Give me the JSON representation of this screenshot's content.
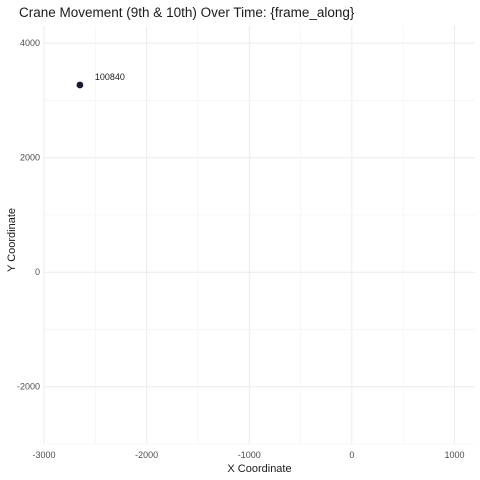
{
  "chart_data": {
    "type": "scatter",
    "title": "Crane Movement (9th & 10th) Over Time: {frame_along}",
    "xlabel": "X Coordinate",
    "ylabel": "Y Coordinate",
    "xlim": [
      -3000,
      1200
    ],
    "ylim": [
      -3000,
      4300
    ],
    "x_ticks": [
      -3000,
      -2000,
      -1000,
      0,
      1000
    ],
    "x_tick_labels": [
      "-3000",
      "-2000",
      "-1000",
      "0",
      "1000"
    ],
    "y_ticks": [
      -2000,
      0,
      2000,
      4000
    ],
    "y_tick_labels": [
      "-2000",
      "0",
      "2000",
      "4000"
    ],
    "grid": true,
    "legend": "none",
    "point_color": "#1a1a2e",
    "points": [
      {
        "x": -2650,
        "y": 3270,
        "label": "100840"
      }
    ]
  }
}
